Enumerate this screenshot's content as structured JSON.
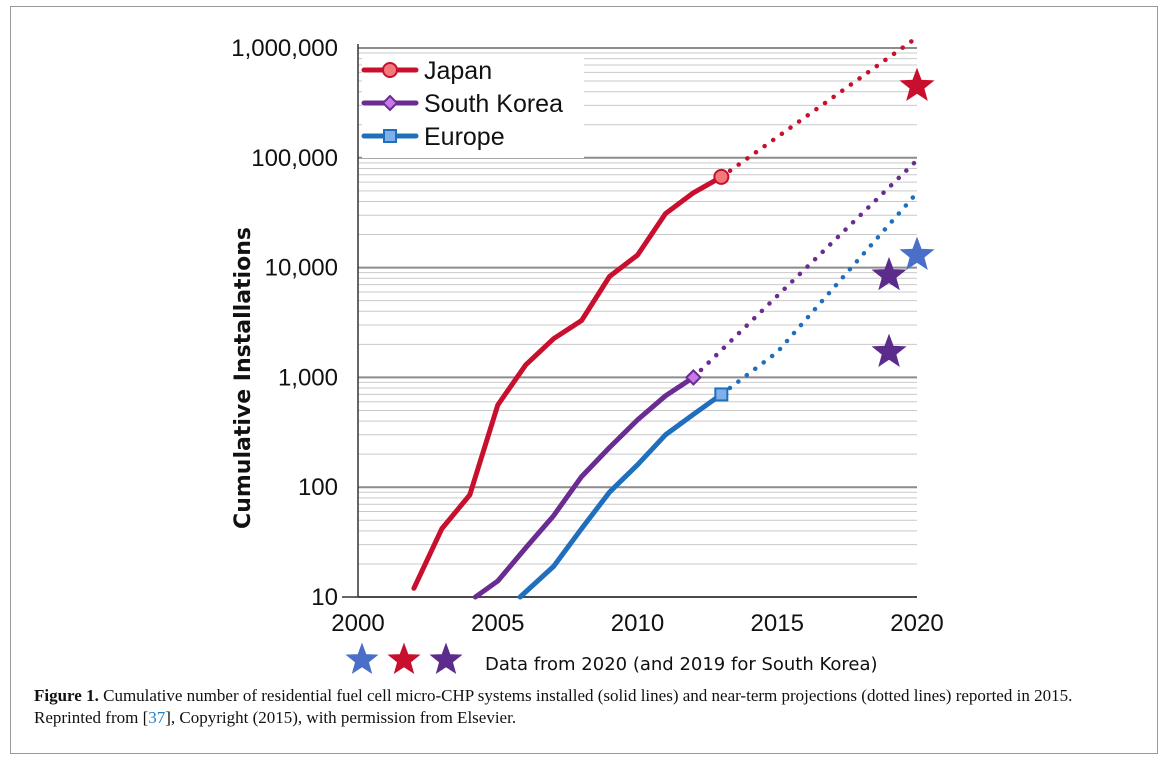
{
  "chart_data": {
    "type": "line",
    "title": "",
    "xlabel": "",
    "ylabel": "Cumulative Installations",
    "xlim": [
      2000,
      2020
    ],
    "ylim": [
      10,
      1000000
    ],
    "yscale": "log",
    "grid": "horizontal",
    "legend_position": "top-left",
    "x_ticks": [
      "2000",
      "2005",
      "2010",
      "2015",
      "2020"
    ],
    "y_ticks": [
      "10",
      "100",
      "1,000",
      "10,000",
      "100,000",
      "1,000,000"
    ],
    "series": [
      {
        "name": "Japan",
        "color": "#c8102e",
        "marker": "circle",
        "x": [
          2002,
          2003,
          2004,
          2005,
          2006,
          2007,
          2008,
          2009,
          2010,
          2011,
          2012,
          2013
        ],
        "y": [
          12,
          42,
          85,
          560,
          1300,
          2250,
          3300,
          8300,
          13000,
          31000,
          48000,
          67000
        ],
        "projection_x": [
          2013,
          2020
        ],
        "projection_y": [
          67000,
          1250000
        ]
      },
      {
        "name": "South Korea",
        "color": "#6a2c91",
        "marker": "diamond",
        "x": [
          2004.2,
          2005,
          2006,
          2007,
          2008,
          2009,
          2010,
          2011,
          2012
        ],
        "y": [
          10,
          14,
          28,
          55,
          125,
          230,
          410,
          680,
          1000
        ],
        "projection_x": [
          2012,
          2020
        ],
        "projection_y": [
          1000,
          95000
        ]
      },
      {
        "name": "Europe",
        "color": "#1f6fbd",
        "marker": "square",
        "x": [
          2005.8,
          2007,
          2008,
          2009,
          2010,
          2011,
          2012,
          2013
        ],
        "y": [
          10,
          19,
          42,
          90,
          160,
          300,
          460,
          700
        ],
        "projection_x": [
          2013,
          2015,
          2020
        ],
        "projection_y": [
          700,
          1700,
          48000
        ]
      }
    ],
    "stars": [
      {
        "color": "#c8102e",
        "x": 2020,
        "y": 450000
      },
      {
        "color": "#4a6fc9",
        "x": 2020,
        "y": 13000
      },
      {
        "color": "#5c2c8c",
        "x": 2019,
        "y": 8500
      },
      {
        "color": "#5c2c8c",
        "x": 2019,
        "y": 1700
      }
    ],
    "annotation": "Data from 2020 (and 2019 for South Korea)",
    "annotation_star_colors": [
      "#4a6fc9",
      "#c8102e",
      "#5c2c8c"
    ]
  },
  "caption": {
    "label": "Figure 1.",
    "text_before_ref": " Cumulative number of residential fuel cell micro-CHP systems installed (solid lines) and near-term projections (dotted lines) reported in 2015. Reprinted from [",
    "ref": "37",
    "text_after_ref": "], Copyright (2015), with permission from Elsevier."
  }
}
